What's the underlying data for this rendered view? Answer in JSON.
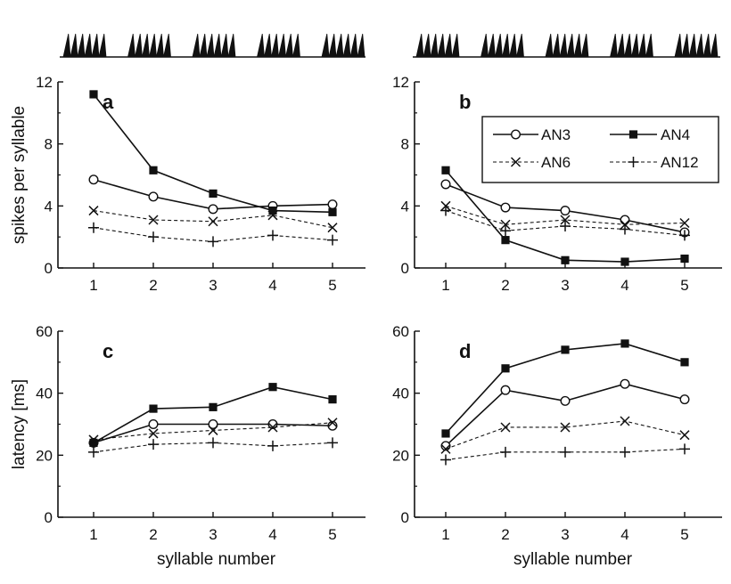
{
  "chart_data": [
    {
      "type": "line",
      "panel": "a",
      "x": [
        1,
        2,
        3,
        4,
        5
      ],
      "ylabel": "spikes per syllable",
      "xlabel": "",
      "ylim": [
        0,
        12
      ],
      "yticks": [
        0,
        4,
        8,
        12
      ],
      "series": [
        {
          "name": "AN3",
          "values": [
            5.7,
            4.6,
            3.8,
            4.0,
            4.1
          ]
        },
        {
          "name": "AN4",
          "values": [
            11.2,
            6.3,
            4.8,
            3.7,
            3.6
          ]
        },
        {
          "name": "AN6",
          "values": [
            3.7,
            3.1,
            3.0,
            3.4,
            2.6
          ]
        },
        {
          "name": "AN12",
          "values": [
            2.6,
            2.0,
            1.7,
            2.1,
            1.8
          ]
        }
      ]
    },
    {
      "type": "line",
      "panel": "b",
      "x": [
        1,
        2,
        3,
        4,
        5
      ],
      "ylabel": "",
      "xlabel": "",
      "ylim": [
        0,
        12
      ],
      "yticks": [
        0,
        4,
        8,
        12
      ],
      "series": [
        {
          "name": "AN3",
          "values": [
            5.4,
            3.9,
            3.7,
            3.1,
            2.3
          ]
        },
        {
          "name": "AN4",
          "values": [
            6.3,
            1.8,
            0.5,
            0.4,
            0.6
          ]
        },
        {
          "name": "AN6",
          "values": [
            4.0,
            2.8,
            3.1,
            2.8,
            2.9
          ]
        },
        {
          "name": "AN12",
          "values": [
            3.7,
            2.4,
            2.7,
            2.5,
            2.1
          ]
        }
      ]
    },
    {
      "type": "line",
      "panel": "c",
      "x": [
        1,
        2,
        3,
        4,
        5
      ],
      "ylabel": "latency [ms]",
      "xlabel": "syllable number",
      "ylim": [
        0,
        60
      ],
      "yticks": [
        0,
        20,
        40,
        60
      ],
      "series": [
        {
          "name": "AN3",
          "values": [
            24,
            30,
            30,
            30,
            29.5
          ]
        },
        {
          "name": "AN4",
          "values": [
            24,
            35,
            35.5,
            42,
            38
          ]
        },
        {
          "name": "AN6",
          "values": [
            25,
            27,
            28,
            29,
            30.5
          ]
        },
        {
          "name": "AN12",
          "values": [
            21,
            23.5,
            24,
            23,
            24
          ]
        }
      ]
    },
    {
      "type": "line",
      "panel": "d",
      "x": [
        1,
        2,
        3,
        4,
        5
      ],
      "ylabel": "",
      "xlabel": "syllable number",
      "ylim": [
        0,
        60
      ],
      "yticks": [
        0,
        20,
        40,
        60
      ],
      "series": [
        {
          "name": "AN3",
          "values": [
            23,
            41,
            37.5,
            43,
            38
          ]
        },
        {
          "name": "AN4",
          "values": [
            27,
            48,
            54,
            56,
            50
          ]
        },
        {
          "name": "AN6",
          "values": [
            22,
            29,
            29,
            31,
            26.5
          ]
        },
        {
          "name": "AN12",
          "values": [
            18.5,
            21,
            21,
            21,
            22
          ]
        }
      ]
    }
  ],
  "legend": {
    "placement": "top-right of panel b",
    "entries": [
      "AN3",
      "AN4",
      "AN6",
      "AN12"
    ]
  },
  "series_styles": {
    "AN3": {
      "line": "solid",
      "marker": "open-circle"
    },
    "AN4": {
      "line": "solid",
      "marker": "filled-square"
    },
    "AN6": {
      "line": "dashed",
      "marker": "cross"
    },
    "AN12": {
      "line": "dashed",
      "marker": "plus"
    }
  },
  "stimulus": {
    "syllables": 5,
    "pulses_per_syllable": 6,
    "color": "#111111"
  },
  "colors": {
    "ink": "#111111",
    "background": "#ffffff"
  }
}
